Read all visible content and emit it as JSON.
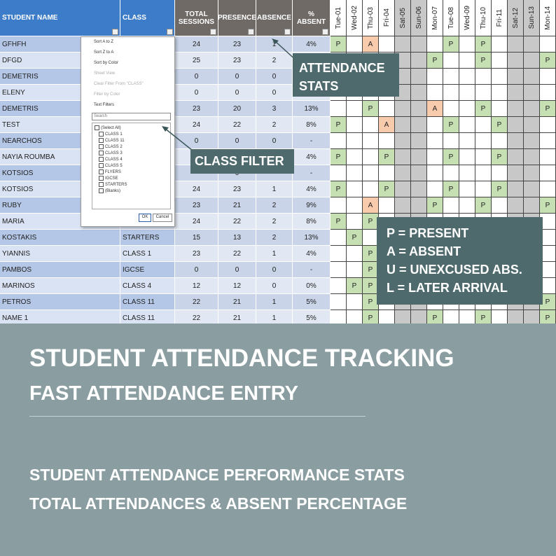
{
  "sheet": {
    "columns": [
      "STUDENT NAME",
      "CLASS",
      "TOTAL SESSIONS",
      "PRESENCE",
      "ABSENCE",
      "% ABSENT"
    ],
    "days": [
      "Tue-01",
      "Wed-02",
      "Thu-03",
      "Fri-04",
      "Sat-05",
      "Sun-06",
      "Mon-07",
      "Tue-08",
      "Wed-09",
      "Thu-10",
      "Fri-11",
      "Sat-12",
      "Sun-13",
      "Mon-14"
    ],
    "rows": [
      {
        "name": "GFHFH",
        "class": null,
        "total": 24,
        "presence": 23,
        "absence": 1,
        "pct": "4%",
        "days": [
          "P",
          null,
          "A",
          null,
          null,
          null,
          null,
          "P",
          null,
          "P",
          null,
          null,
          null,
          null
        ]
      },
      {
        "name": "DFGD",
        "class": null,
        "total": 25,
        "presence": 23,
        "absence": 2,
        "pct": null,
        "days": [
          null,
          null,
          null,
          null,
          null,
          null,
          "P",
          null,
          null,
          "P",
          null,
          null,
          null,
          "P"
        ]
      },
      {
        "name": "DEMETRIS",
        "class": null,
        "total": 0,
        "presence": 0,
        "absence": 0,
        "pct": null,
        "days": [
          null,
          null,
          null,
          null,
          null,
          null,
          null,
          null,
          null,
          null,
          null,
          null,
          null,
          null
        ]
      },
      {
        "name": "ELENY",
        "class": null,
        "total": 0,
        "presence": 0,
        "absence": 0,
        "pct": null,
        "days": [
          null,
          null,
          null,
          null,
          null,
          null,
          null,
          null,
          null,
          null,
          null,
          null,
          null,
          null
        ]
      },
      {
        "name": "DEMETRIS",
        "class": null,
        "total": 23,
        "presence": 20,
        "absence": 3,
        "pct": "13%",
        "days": [
          null,
          null,
          "P",
          null,
          null,
          null,
          "A",
          null,
          null,
          "P",
          null,
          null,
          null,
          "P"
        ]
      },
      {
        "name": "TEST",
        "class": null,
        "total": 24,
        "presence": 22,
        "absence": 2,
        "pct": "8%",
        "days": [
          "P",
          null,
          null,
          "A",
          null,
          null,
          null,
          "P",
          null,
          null,
          "P",
          null,
          null,
          null
        ]
      },
      {
        "name": "NEARCHOS",
        "class": null,
        "total": 0,
        "presence": 0,
        "absence": 0,
        "pct": "-",
        "days": [
          null,
          null,
          null,
          null,
          null,
          null,
          null,
          null,
          null,
          null,
          null,
          null,
          null,
          null
        ]
      },
      {
        "name": "NAYIA ROUMBA",
        "class": null,
        "total": null,
        "presence": null,
        "absence": null,
        "pct": "4%",
        "days": [
          "P",
          null,
          null,
          "P",
          null,
          null,
          null,
          "P",
          null,
          null,
          "P",
          null,
          null,
          null
        ]
      },
      {
        "name": "KOTSIOS",
        "class": null,
        "total": null,
        "presence": 0,
        "absence": null,
        "pct": "-",
        "days": [
          null,
          null,
          null,
          null,
          null,
          null,
          null,
          null,
          null,
          null,
          null,
          null,
          null,
          null
        ]
      },
      {
        "name": "KOTSIOS",
        "class": null,
        "total": 24,
        "presence": 23,
        "absence": 1,
        "pct": "4%",
        "days": [
          "P",
          null,
          null,
          "P",
          null,
          null,
          null,
          "P",
          null,
          null,
          "P",
          null,
          null,
          null
        ]
      },
      {
        "name": "RUBY",
        "class": null,
        "total": 23,
        "presence": 21,
        "absence": 2,
        "pct": "9%",
        "days": [
          null,
          null,
          "A",
          null,
          null,
          null,
          "P",
          null,
          null,
          "P",
          null,
          null,
          null,
          "P"
        ]
      },
      {
        "name": "MARIA",
        "class": null,
        "total": 24,
        "presence": 22,
        "absence": 2,
        "pct": "8%",
        "days": [
          "P",
          null,
          "P",
          null,
          null,
          null,
          null,
          null,
          null,
          null,
          null,
          null,
          null,
          null
        ]
      },
      {
        "name": "KOSTAKIS",
        "class": "STARTERS",
        "total": 15,
        "presence": 13,
        "absence": 2,
        "pct": "13%",
        "days": [
          null,
          "P",
          null,
          null,
          null,
          null,
          null,
          null,
          null,
          null,
          null,
          null,
          null,
          null
        ]
      },
      {
        "name": "YIANNIS",
        "class": "CLASS 1",
        "total": 23,
        "presence": 22,
        "absence": 1,
        "pct": "4%",
        "days": [
          null,
          null,
          "P",
          null,
          null,
          null,
          null,
          null,
          null,
          null,
          null,
          null,
          null,
          null
        ]
      },
      {
        "name": "PAMBOS",
        "class": "IGCSE",
        "total": 0,
        "presence": 0,
        "absence": 0,
        "pct": "-",
        "days": [
          null,
          null,
          "P",
          null,
          null,
          null,
          null,
          null,
          null,
          null,
          null,
          null,
          null,
          null
        ]
      },
      {
        "name": "MARINOS",
        "class": "CLASS 4",
        "total": 12,
        "presence": 12,
        "absence": 0,
        "pct": "0%",
        "days": [
          null,
          "P",
          "P",
          null,
          null,
          null,
          null,
          null,
          null,
          null,
          null,
          null,
          null,
          null
        ]
      },
      {
        "name": "PETROS",
        "class": "CLASS 11",
        "total": 22,
        "presence": 21,
        "absence": 1,
        "pct": "5%",
        "days": [
          null,
          null,
          "P",
          null,
          null,
          null,
          null,
          null,
          null,
          null,
          null,
          null,
          null,
          "P"
        ]
      },
      {
        "name": "NAME 1",
        "class": "CLASS 11",
        "total": 22,
        "presence": 21,
        "absence": 1,
        "pct": "5%",
        "days": [
          null,
          null,
          "P",
          null,
          null,
          null,
          "P",
          null,
          null,
          "P",
          null,
          null,
          null,
          "P"
        ]
      }
    ]
  },
  "filter_menu": {
    "items": [
      "Sort A to Z",
      "Sort Z to A",
      "Sort by Color",
      "Sheet View",
      "Clear Filter From \"CLASS\"",
      "Filter by Color",
      "Text Filters"
    ],
    "search": "Search",
    "options": [
      "(Select All)",
      "CLASS 1",
      "CLASS 11",
      "CLASS 2",
      "CLASS 3",
      "CLASS 4",
      "CLASS 5",
      "FLYERS",
      "IGCSE",
      "STARTERS",
      "(Blanks)"
    ],
    "ok": "OK",
    "cancel": "Cancel"
  },
  "callouts": {
    "stats": "ATTENDANCE STATS",
    "filter": "CLASS FILTER"
  },
  "legend": [
    "P = PRESENT",
    "A = ABSENT",
    "U = UNEXCUSED ABS.",
    "L = LATER ARRIVAL"
  ],
  "banner": {
    "title": "STUDENT ATTENDANCE TRACKING",
    "subtitle": "FAST ATTENDANCE ENTRY",
    "line1": "STUDENT ATTENDANCE PERFORMANCE STATS",
    "line2": "TOTAL ATTENDANCES & ABSENT PERCENTAGE"
  }
}
